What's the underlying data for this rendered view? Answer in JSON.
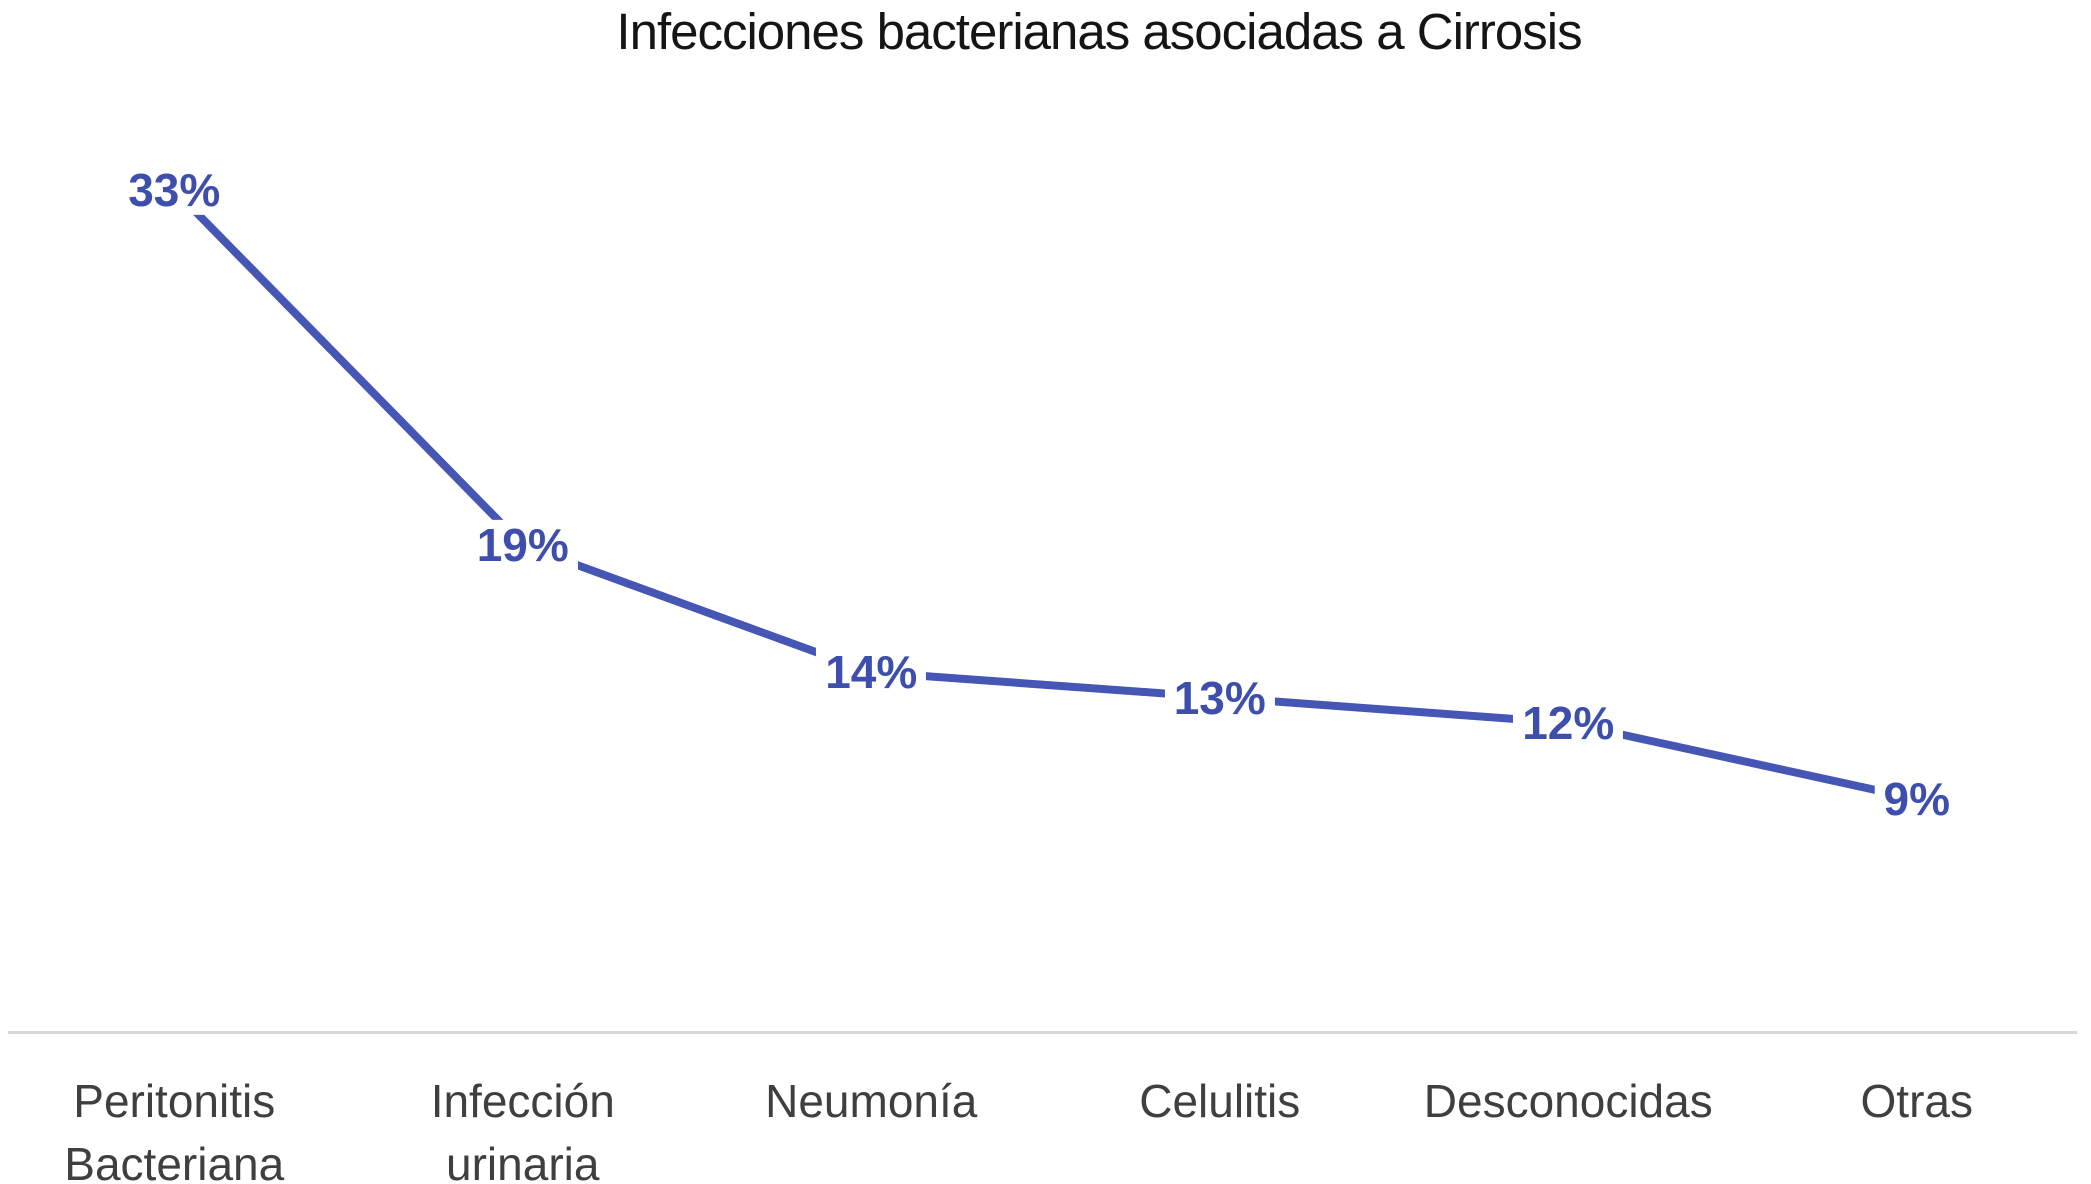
{
  "chart_data": {
    "type": "line",
    "title": "Infecciones bacterianas asociadas a Cirrosis",
    "categories": [
      "Peritonitis\nBacteriana",
      "Infección\nurinaria",
      "Neumonía",
      "Celulitis",
      "Desconocidas",
      "Otras"
    ],
    "values": [
      33,
      19,
      14,
      13,
      12,
      9
    ],
    "data_labels": [
      "33%",
      "19%",
      "14%",
      "13%",
      "12%",
      "9%"
    ],
    "series": [
      {
        "name": "Infecciones",
        "values": [
          33,
          19,
          14,
          13,
          12,
          9
        ]
      }
    ],
    "value_format": "percent",
    "xlabel": "",
    "ylabel": "",
    "ylim": [
      0,
      35
    ],
    "grid": false,
    "legend": false,
    "data_label_position": "center",
    "colors": {
      "line": "#4656B4",
      "data_label_text": "#3E4EAC",
      "axis_line": "#D7D7D7",
      "category_text": "#3F3F3F",
      "title_text": "#151515",
      "background": "#FFFFFF"
    }
  }
}
